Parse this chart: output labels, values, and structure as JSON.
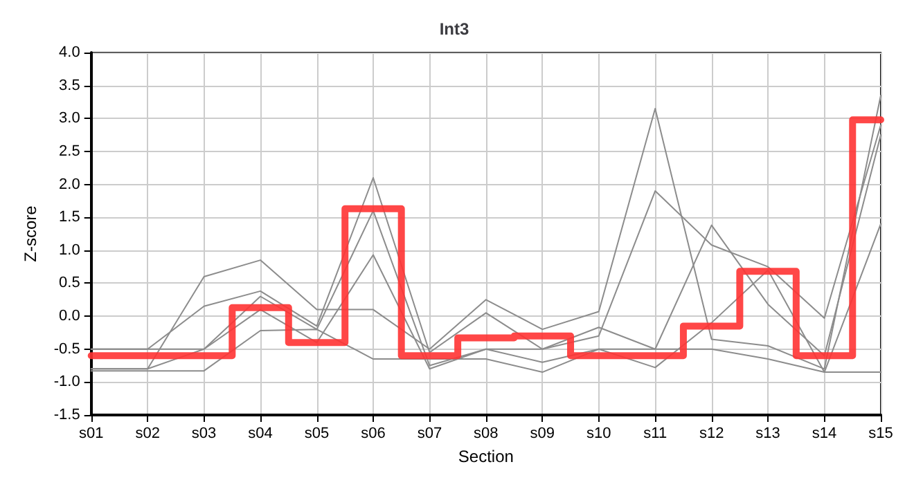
{
  "chart_data": {
    "type": "line",
    "title": "Int3",
    "xlabel": "Section",
    "ylabel": "Z-score",
    "categories": [
      "s01",
      "s02",
      "s03",
      "s04",
      "s05",
      "s06",
      "s07",
      "s08",
      "s09",
      "s10",
      "s11",
      "s12",
      "s13",
      "s14",
      "s15"
    ],
    "series": [
      {
        "color": "#8c8c8c",
        "values": [
          -0.8,
          -0.8,
          0.6,
          0.85,
          0.1,
          0.1,
          -0.5,
          0.25,
          -0.2,
          0.07,
          3.15,
          -0.35,
          -0.45,
          -0.8,
          3.35
        ]
      },
      {
        "type": "line",
        "color": "#8c8c8c",
        "values": [
          -0.5,
          -0.5,
          0.15,
          0.38,
          -0.15,
          2.1,
          -0.55,
          0.05,
          -0.5,
          -0.3,
          1.9,
          1.08,
          0.75,
          -0.03,
          2.9
        ]
      },
      {
        "type": "line",
        "color": "#8c8c8c",
        "values": [
          -0.5,
          -0.5,
          -0.5,
          0.3,
          -0.2,
          1.6,
          -0.75,
          -0.5,
          -0.5,
          -0.17,
          -0.5,
          1.38,
          0.18,
          -0.6,
          2.75
        ]
      },
      {
        "type": "line",
        "color": "#8c8c8c",
        "values": [
          -0.8,
          -0.8,
          -0.5,
          0.1,
          -0.4,
          0.93,
          -0.8,
          -0.5,
          -0.7,
          -0.5,
          -0.78,
          -0.1,
          0.7,
          -0.85,
          1.4
        ]
      },
      {
        "type": "line",
        "color": "#8c8c8c",
        "values": [
          -0.83,
          -0.83,
          -0.83,
          -0.22,
          -0.2,
          -0.65,
          -0.65,
          -0.65,
          -0.85,
          -0.5,
          -0.5,
          -0.5,
          -0.65,
          -0.85,
          -0.85
        ]
      },
      {
        "type": "step",
        "color": "#ff3333",
        "values": [
          -0.6,
          -0.6,
          -0.6,
          0.13,
          -0.4,
          1.63,
          -0.6,
          -0.33,
          -0.3,
          -0.6,
          -0.6,
          -0.15,
          0.68,
          -0.6,
          2.98
        ]
      }
    ],
    "ylim": [
      -1.5,
      4
    ],
    "yticks": [
      {
        "value": -1.5,
        "label": "-1.5"
      },
      {
        "value": -1,
        "label": "-1.0"
      },
      {
        "value": -0.5,
        "label": "-0.5"
      },
      {
        "value": 0,
        "label": "0.0"
      },
      {
        "value": 0.5,
        "label": "0.5"
      },
      {
        "value": 1,
        "label": "1.0"
      },
      {
        "value": 1.5,
        "label": "1.5"
      },
      {
        "value": 2,
        "label": "2.0"
      },
      {
        "value": 2.5,
        "label": "2.5"
      },
      {
        "value": 3,
        "label": "3.0"
      },
      {
        "value": 3.5,
        "label": "3.5"
      },
      {
        "value": 4,
        "label": "4.0"
      }
    ],
    "grid": true,
    "marker": "none",
    "line_style": "solid"
  }
}
